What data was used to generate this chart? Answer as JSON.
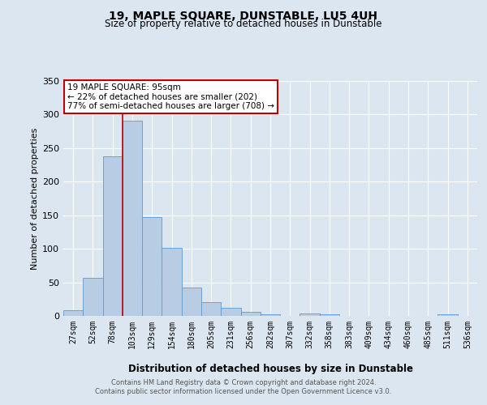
{
  "title": "19, MAPLE SQUARE, DUNSTABLE, LU5 4UH",
  "subtitle": "Size of property relative to detached houses in Dunstable",
  "xlabel": "Distribution of detached houses by size in Dunstable",
  "ylabel": "Number of detached properties",
  "footer_line1": "Contains HM Land Registry data © Crown copyright and database right 2024.",
  "footer_line2": "Contains public sector information licensed under the Open Government Licence v3.0.",
  "categories": [
    "27sqm",
    "52sqm",
    "78sqm",
    "103sqm",
    "129sqm",
    "154sqm",
    "180sqm",
    "205sqm",
    "231sqm",
    "256sqm",
    "282sqm",
    "307sqm",
    "332sqm",
    "358sqm",
    "383sqm",
    "409sqm",
    "434sqm",
    "460sqm",
    "485sqm",
    "511sqm",
    "536sqm"
  ],
  "bar_values": [
    8,
    57,
    238,
    291,
    147,
    101,
    42,
    20,
    12,
    6,
    3,
    0,
    4,
    3,
    0,
    0,
    0,
    0,
    0,
    2,
    0
  ],
  "bar_color": "#b8cce4",
  "bar_edge_color": "#5b9bd5",
  "background_color": "#dce6f1",
  "ylim": [
    0,
    350
  ],
  "yticks": [
    0,
    50,
    100,
    150,
    200,
    250,
    300,
    350
  ],
  "vline_color": "#c00000",
  "annotation_title": "19 MAPLE SQUARE: 95sqm",
  "annotation_line2": "← 22% of detached houses are smaller (202)",
  "annotation_line3": "77% of semi-detached houses are larger (708) →",
  "annotation_box_color": "#c00000",
  "annotation_bg": "#ffffff"
}
